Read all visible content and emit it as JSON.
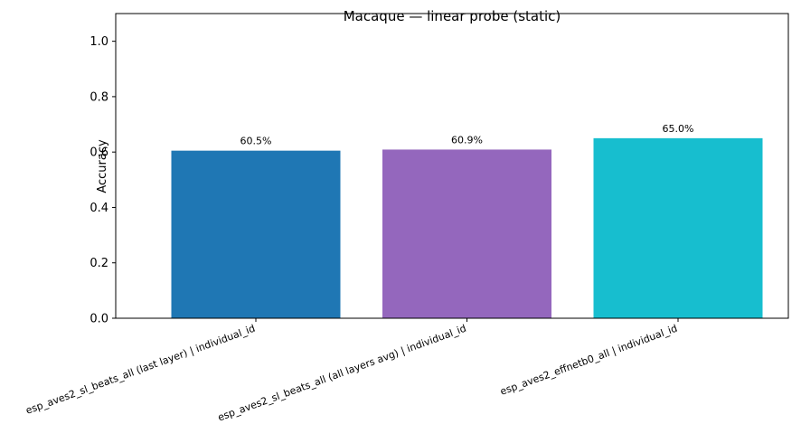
{
  "chart_data": {
    "type": "bar",
    "title": "Macaque — linear probe (static)",
    "y_label": "Accuracy",
    "categories": [
      "esp_aves2_sl_beats_all (last layer) | individual_id",
      "esp_aves2_sl_beats_all (all layers avg) | individual_id",
      "esp_aves2_effnetb0_all | individual_id"
    ],
    "values": [
      0.605,
      0.609,
      0.65
    ],
    "value_labels": [
      "60.5%",
      "60.9%",
      "65.0%"
    ],
    "colors": [
      "#1f77b4",
      "#9467bd",
      "#17becf"
    ],
    "ylim": [
      0,
      1.1
    ],
    "yticks": [
      {
        "value": 0,
        "label": "0.0"
      },
      0.2,
      0.4,
      0.6,
      0.8,
      {
        "value": 1,
        "label": "1.0"
      }
    ],
    "grid": false
  }
}
